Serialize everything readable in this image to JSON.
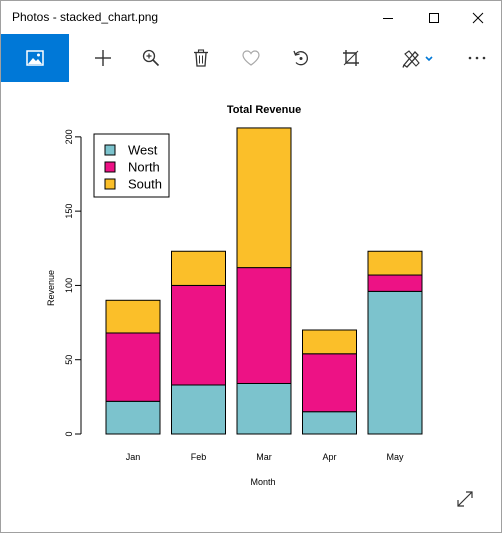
{
  "window": {
    "title": "Photos - stacked_chart.png",
    "controls": [
      "minimize",
      "maximize",
      "close"
    ]
  },
  "toolbar": {
    "accent_color": "#0078d7",
    "buttons": [
      {
        "id": "view-photo",
        "icon": "picture-icon"
      },
      {
        "id": "add",
        "icon": "plus-icon"
      },
      {
        "id": "zoom",
        "icon": "zoom-in-icon"
      },
      {
        "id": "delete",
        "icon": "trash-icon"
      },
      {
        "id": "favorite",
        "icon": "heart-icon"
      },
      {
        "id": "rotate",
        "icon": "rotate-icon"
      },
      {
        "id": "crop",
        "icon": "crop-icon"
      },
      {
        "id": "edit",
        "icon": "draw-icon"
      },
      {
        "id": "more",
        "icon": "more-icon"
      }
    ]
  },
  "chart_data": {
    "type": "bar",
    "stacked": true,
    "title": "Total Revenue",
    "xlabel": "Month",
    "ylabel": "Revenue",
    "categories": [
      "Jan",
      "Feb",
      "Mar",
      "Apr",
      "May"
    ],
    "ylim": [
      0,
      210
    ],
    "yticks": [
      0,
      50,
      100,
      150,
      200
    ],
    "series": [
      {
        "name": "West",
        "color": "#7cc3cd",
        "values": [
          22,
          33,
          34,
          15,
          96
        ]
      },
      {
        "name": "North",
        "color": "#ed1285",
        "values": [
          46,
          67,
          78,
          39,
          11
        ]
      },
      {
        "name": "South",
        "color": "#fbbf29",
        "values": [
          22,
          23,
          94,
          16,
          16
        ]
      }
    ],
    "legend_position": "top-left",
    "grid": false
  }
}
